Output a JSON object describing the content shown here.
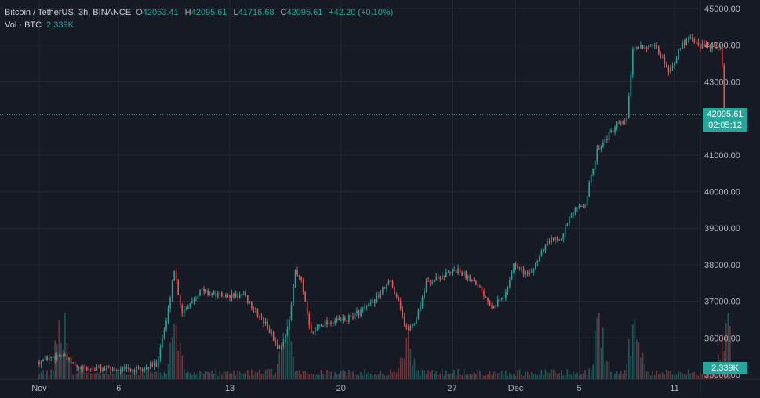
{
  "legend": {
    "symbol": "Bitcoin / TetherUS, 3h, BINANCE",
    "open_label": "O",
    "open": "42053.41",
    "high_label": "H",
    "high": "42095.61",
    "low_label": "L",
    "low": "41716.68",
    "close_label": "C",
    "close": "42095.61",
    "change": "+42.20 (+0.10%)",
    "volume_label": "Vol · BTC",
    "volume": "2.339K"
  },
  "last_price": {
    "price": "42095.61",
    "countdown": "02:05:12"
  },
  "last_volume": "2.339K",
  "colors": {
    "background": "#161a25",
    "grid": "#242833",
    "up": "#26a69a",
    "down": "#ef5350",
    "text": "#b2b5be"
  },
  "chart_data": {
    "type": "candlestick",
    "title": "Bitcoin / TetherUS, 3h, BINANCE",
    "price_axis_labels": [
      "45000.00",
      "44000.00",
      "43000.00",
      "42000.00",
      "41000.00",
      "40000.00",
      "39000.00",
      "38000.00",
      "37000.00",
      "36000.00"
    ],
    "price_range": [
      35020,
      45200
    ],
    "time_axis_labels": [
      {
        "label": "Nov",
        "day": 0
      },
      {
        "label": "6",
        "day": 5
      },
      {
        "label": "13",
        "day": 12
      },
      {
        "label": "20",
        "day": 19
      },
      {
        "label": "27",
        "day": 26
      },
      {
        "label": "Dec",
        "day": 30
      },
      {
        "label": "5",
        "day": 34
      },
      {
        "label": "11",
        "day": 40
      }
    ],
    "grid": true,
    "price_path": [
      {
        "day": 0,
        "price": 35350
      },
      {
        "day": 1.5,
        "price": 35550
      },
      {
        "day": 2.6,
        "price": 35150
      },
      {
        "day": 4,
        "price": 35150
      },
      {
        "day": 5.5,
        "price": 35150
      },
      {
        "day": 6.5,
        "price": 35100
      },
      {
        "day": 7.5,
        "price": 35300
      },
      {
        "day": 8.2,
        "price": 36600
      },
      {
        "day": 8.6,
        "price": 37900
      },
      {
        "day": 9.1,
        "price": 36700
      },
      {
        "day": 10.3,
        "price": 37300
      },
      {
        "day": 11.5,
        "price": 37150
      },
      {
        "day": 13,
        "price": 37150
      },
      {
        "day": 14.5,
        "price": 36300
      },
      {
        "day": 15.2,
        "price": 35700
      },
      {
        "day": 15.8,
        "price": 36200
      },
      {
        "day": 16.2,
        "price": 37800
      },
      {
        "day": 16.6,
        "price": 37600
      },
      {
        "day": 17.2,
        "price": 36100
      },
      {
        "day": 17.8,
        "price": 36400
      },
      {
        "day": 19.5,
        "price": 36500
      },
      {
        "day": 21,
        "price": 36900
      },
      {
        "day": 22.2,
        "price": 37550
      },
      {
        "day": 22.8,
        "price": 37000
      },
      {
        "day": 23.2,
        "price": 36200
      },
      {
        "day": 23.8,
        "price": 36450
      },
      {
        "day": 24.5,
        "price": 37500
      },
      {
        "day": 25.5,
        "price": 37700
      },
      {
        "day": 26.5,
        "price": 37850
      },
      {
        "day": 27.7,
        "price": 37500
      },
      {
        "day": 28.6,
        "price": 36900
      },
      {
        "day": 29.4,
        "price": 37100
      },
      {
        "day": 30,
        "price": 38000
      },
      {
        "day": 31,
        "price": 37700
      },
      {
        "day": 32,
        "price": 38600
      },
      {
        "day": 33,
        "price": 38800
      },
      {
        "day": 33.7,
        "price": 39400
      },
      {
        "day": 34.5,
        "price": 39700
      },
      {
        "day": 35.3,
        "price": 41200
      },
      {
        "day": 36.5,
        "price": 41800
      },
      {
        "day": 37.1,
        "price": 41900
      },
      {
        "day": 37.5,
        "price": 43800
      },
      {
        "day": 38,
        "price": 44000
      },
      {
        "day": 39,
        "price": 43900
      },
      {
        "day": 39.8,
        "price": 43300
      },
      {
        "day": 40.6,
        "price": 44000
      },
      {
        "day": 41.1,
        "price": 44300
      },
      {
        "day": 41.6,
        "price": 44000
      },
      {
        "day": 42.7,
        "price": 43950
      },
      {
        "day": 43.1,
        "price": 43850
      },
      {
        "day": 43.2,
        "price": 42400
      },
      {
        "day": 43.3,
        "price": 41500
      },
      {
        "day": 43.5,
        "price": 42095.61
      }
    ],
    "volume_peaks": [
      {
        "day": 1.4,
        "value": 1.0
      },
      {
        "day": 8.6,
        "value": 0.7
      },
      {
        "day": 15.5,
        "value": 0.85
      },
      {
        "day": 23.2,
        "value": 0.75
      },
      {
        "day": 35.3,
        "value": 0.8
      },
      {
        "day": 37.5,
        "value": 1.0
      },
      {
        "day": 43.2,
        "value": 0.95
      }
    ]
  }
}
